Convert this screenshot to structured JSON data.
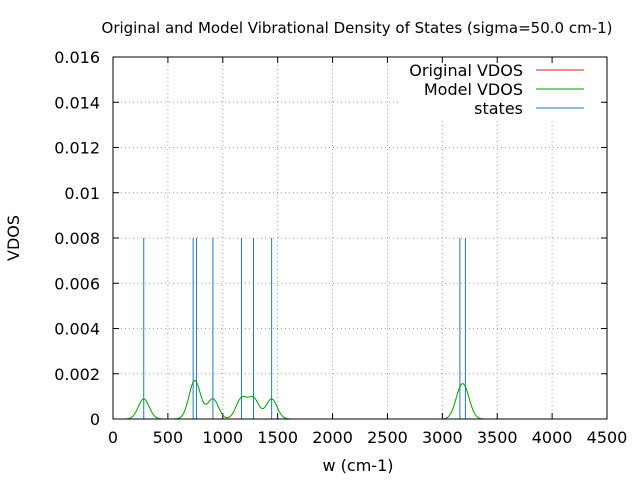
{
  "chart_data": {
    "type": "line",
    "title": "Original and Model Vibrational Density of States (sigma=50.0 cm-1)",
    "xlabel": "w (cm-1)",
    "ylabel": "VDOS",
    "xlim": [
      0,
      4500
    ],
    "ylim": [
      0,
      0.016
    ],
    "x_ticks": [
      0,
      500,
      1000,
      1500,
      2000,
      2500,
      3000,
      3500,
      4000,
      4500
    ],
    "x_tick_labels": [
      "0",
      "500",
      "1000",
      "1500",
      "2000",
      "2500",
      "3000",
      "3500",
      "4000",
      "4500"
    ],
    "y_ticks": [
      0,
      0.002,
      0.004,
      0.006,
      0.008,
      0.01,
      0.012,
      0.014,
      0.016
    ],
    "y_tick_labels": [
      "0",
      "0.002",
      "0.004",
      "0.006",
      "0.008",
      "0.01",
      "0.012",
      "0.014",
      "0.016"
    ],
    "grid": true,
    "legend_position": "top-right",
    "sigma": 50.0,
    "series": [
      {
        "name": "Original VDOS",
        "color": "#e41a1c",
        "kind": "gaussian_sum",
        "visible_curve": false
      },
      {
        "name": "Model VDOS",
        "color": "#00a000",
        "kind": "gaussian_sum",
        "visible_curve": true
      },
      {
        "name": "states",
        "color": "#1f77c4",
        "kind": "impulses"
      }
    ],
    "states": [
      {
        "w": 280,
        "height": 0.008
      },
      {
        "w": 730,
        "height": 0.008
      },
      {
        "w": 760,
        "height": 0.008
      },
      {
        "w": 910,
        "height": 0.008
      },
      {
        "w": 1170,
        "height": 0.008
      },
      {
        "w": 1280,
        "height": 0.008
      },
      {
        "w": 1445,
        "height": 0.008
      },
      {
        "w": 3160,
        "height": 0.008
      },
      {
        "w": 3210,
        "height": 0.008
      }
    ]
  }
}
